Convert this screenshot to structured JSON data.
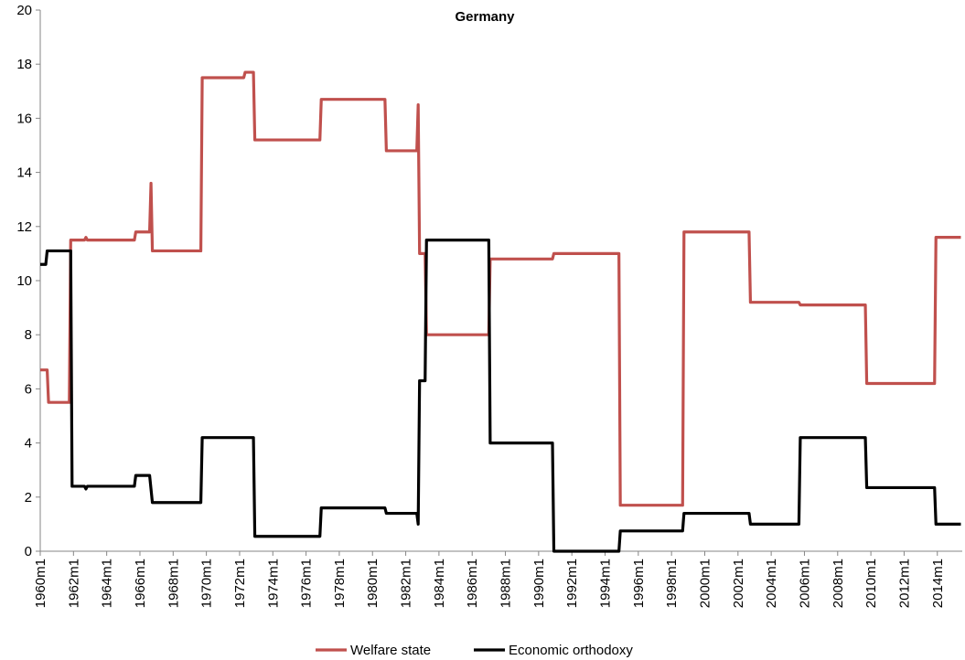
{
  "chart_data": {
    "type": "line",
    "title": "Germany",
    "xlabel": "",
    "ylabel": "",
    "ylim": [
      0,
      20
    ],
    "yticks": [
      0,
      2,
      4,
      6,
      8,
      10,
      12,
      14,
      16,
      18,
      20
    ],
    "xlim": [
      "1960m1",
      "2015m6"
    ],
    "xticks": [
      "1960m1",
      "1962m1",
      "1964m1",
      "1966m1",
      "1968m1",
      "1970m1",
      "1972m1",
      "1974m1",
      "1976m1",
      "1978m1",
      "1980m1",
      "1982m1",
      "1984m1",
      "1986m1",
      "1988m1",
      "1990m1",
      "1992m1",
      "1994m1",
      "1996m1",
      "1998m1",
      "2000m1",
      "2002m1",
      "2004m1",
      "2006m1",
      "2008m1",
      "2010m1",
      "2012m1",
      "2014m1"
    ],
    "grid": false,
    "legend_position": "bottom",
    "series": [
      {
        "name": "Welfare state",
        "color": "#c0504d",
        "points": [
          [
            "1960m1",
            6.7
          ],
          [
            "1960m6",
            6.7
          ],
          [
            "1960m7",
            5.5
          ],
          [
            "1961m10",
            5.5
          ],
          [
            "1961m11",
            11.5
          ],
          [
            "1962m9",
            11.5
          ],
          [
            "1962m10",
            11.6
          ],
          [
            "1962m11",
            11.5
          ],
          [
            "1965m9",
            11.5
          ],
          [
            "1965m10",
            11.8
          ],
          [
            "1966m8",
            11.8
          ],
          [
            "1966m9",
            13.6
          ],
          [
            "1966m10",
            11.1
          ],
          [
            "1969m9",
            11.1
          ],
          [
            "1969m10",
            17.5
          ],
          [
            "1972m4",
            17.5
          ],
          [
            "1972m5",
            17.7
          ],
          [
            "1972m11",
            17.7
          ],
          [
            "1972m12",
            15.2
          ],
          [
            "1976m11",
            15.2
          ],
          [
            "1976m12",
            16.7
          ],
          [
            "1980m10",
            16.7
          ],
          [
            "1980m11",
            14.8
          ],
          [
            "1982m9",
            14.8
          ],
          [
            "1982m10",
            16.5
          ],
          [
            "1982m11",
            11.0
          ],
          [
            "1983m3",
            11.0
          ],
          [
            "1983m4",
            8.0
          ],
          [
            "1987m1",
            8.0
          ],
          [
            "1987m2",
            10.8
          ],
          [
            "1990m11",
            10.8
          ],
          [
            "1990m12",
            11.0
          ],
          [
            "1994m11",
            11.0
          ],
          [
            "1994m12",
            1.7
          ],
          [
            "1998m9",
            1.7
          ],
          [
            "1998m10",
            11.8
          ],
          [
            "2002m9",
            11.8
          ],
          [
            "2002m10",
            9.2
          ],
          [
            "2005m9",
            9.2
          ],
          [
            "2005m10",
            9.1
          ],
          [
            "2009m9",
            9.1
          ],
          [
            "2009m10",
            6.2
          ],
          [
            "2013m11",
            6.2
          ],
          [
            "2013m12",
            11.6
          ],
          [
            "2015m6",
            11.6
          ]
        ]
      },
      {
        "name": "Economic orthodoxy",
        "color": "#000000",
        "points": [
          [
            "1960m1",
            10.6
          ],
          [
            "1960m5",
            10.6
          ],
          [
            "1960m6",
            11.1
          ],
          [
            "1961m11",
            11.1
          ],
          [
            "1961m12",
            2.4
          ],
          [
            "1962m9",
            2.4
          ],
          [
            "1962m10",
            2.3
          ],
          [
            "1962m11",
            2.4
          ],
          [
            "1965m9",
            2.4
          ],
          [
            "1965m10",
            2.8
          ],
          [
            "1966m8",
            2.8
          ],
          [
            "1966m10",
            1.8
          ],
          [
            "1969m9",
            1.8
          ],
          [
            "1969m10",
            4.2
          ],
          [
            "1972m11",
            4.2
          ],
          [
            "1972m12",
            0.55
          ],
          [
            "1976m11",
            0.55
          ],
          [
            "1976m12",
            1.6
          ],
          [
            "1980m10",
            1.6
          ],
          [
            "1980m11",
            1.4
          ],
          [
            "1982m9",
            1.4
          ],
          [
            "1982m10",
            1.0
          ],
          [
            "1982m11",
            6.3
          ],
          [
            "1983m3",
            6.3
          ],
          [
            "1983m4",
            11.5
          ],
          [
            "1987m1",
            11.5
          ],
          [
            "1987m2",
            4.0
          ],
          [
            "1990m11",
            4.0
          ],
          [
            "1990m12",
            0.0
          ],
          [
            "1994m11",
            0.0
          ],
          [
            "1994m12",
            0.75
          ],
          [
            "1998m9",
            0.75
          ],
          [
            "1998m10",
            1.4
          ],
          [
            "2002m9",
            1.4
          ],
          [
            "2002m10",
            1.0
          ],
          [
            "2005m9",
            1.0
          ],
          [
            "2005m10",
            4.2
          ],
          [
            "2009m9",
            4.2
          ],
          [
            "2009m10",
            2.35
          ],
          [
            "2013m11",
            2.35
          ],
          [
            "2013m12",
            1.0
          ],
          [
            "2015m6",
            1.0
          ]
        ]
      }
    ]
  }
}
